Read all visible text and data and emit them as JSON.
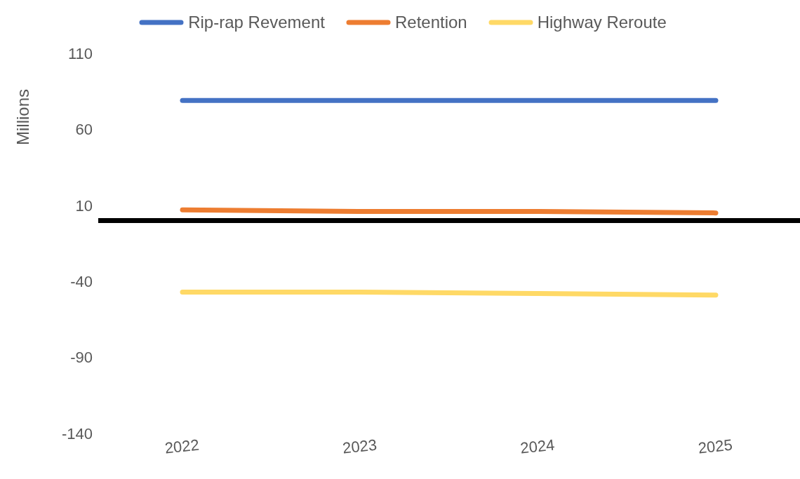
{
  "chart_data": {
    "type": "line",
    "ylabel": "Millions",
    "categories": [
      "2022",
      "2023",
      "2024",
      "2025"
    ],
    "series": [
      {
        "name": "Rip-rap Revement",
        "color": "#4472c4",
        "values": [
          79,
          79,
          79,
          79
        ]
      },
      {
        "name": "Retention",
        "color": "#ed7d31",
        "values": [
          7,
          6,
          6,
          5
        ]
      },
      {
        "name": "Highway Reroute",
        "color": "#ffd966",
        "values": [
          -47,
          -47,
          -48,
          -49
        ]
      }
    ],
    "ylim": [
      -140,
      110
    ],
    "yticks": [
      -140,
      -90,
      -40,
      10,
      60,
      110
    ],
    "grid": false,
    "legend": "top",
    "marker": "none",
    "line_style": "solid",
    "ref_lines": [
      {
        "axis": "y",
        "value": 0,
        "color": "#000000"
      }
    ]
  }
}
